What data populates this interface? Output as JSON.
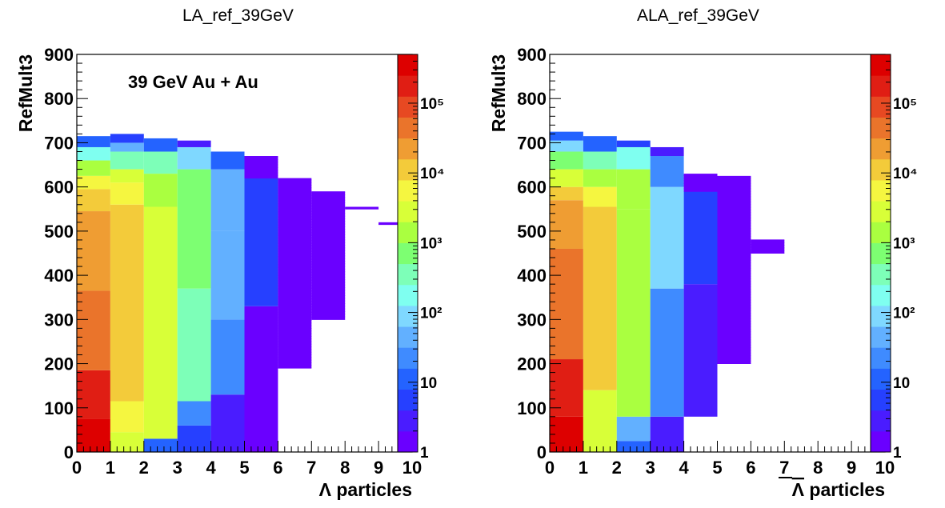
{
  "chart_data": [
    {
      "type": "heatmap",
      "title": "LA_ref_39GeV",
      "xlabel": "Λ particles",
      "ylabel": "RefMult3",
      "annotation": "39 GeV Au + Au",
      "xlim": [
        0,
        10
      ],
      "ylim": [
        0,
        900
      ],
      "x_ticks": [
        "0",
        "1",
        "2",
        "3",
        "4",
        "5",
        "6",
        "7",
        "8",
        "9",
        "10"
      ],
      "y_ticks": [
        "0",
        "100",
        "200",
        "300",
        "400",
        "500",
        "600",
        "700",
        "800",
        "900"
      ],
      "z_scale": "log",
      "z_range": [
        1,
        500000
      ],
      "z_tick_labels": [
        "1",
        "10",
        "10²",
        "10³",
        "10⁴",
        "10⁵"
      ],
      "columns": [
        {
          "x": 0,
          "ymax": 715,
          "bands": [
            [
              0,
              75,
              450000
            ],
            [
              75,
              185,
              150000
            ],
            [
              185,
              365,
              60000
            ],
            [
              365,
              545,
              20000
            ],
            [
              545,
              595,
              10000
            ],
            [
              595,
              625,
              4000
            ],
            [
              625,
              660,
              1200
            ],
            [
              660,
              690,
              150
            ],
            [
              690,
              715,
              10
            ]
          ]
        },
        {
          "x": 1,
          "ymax": 720,
          "bands": [
            [
              0,
              45,
              3000
            ],
            [
              45,
              115,
              7000
            ],
            [
              115,
              560,
              9000
            ],
            [
              560,
              610,
              5000
            ],
            [
              610,
              640,
              2000
            ],
            [
              640,
              680,
              400
            ],
            [
              680,
              700,
              40
            ],
            [
              700,
              720,
              5
            ]
          ]
        },
        {
          "x": 2,
          "ymax": 710,
          "bands": [
            [
              0,
              30,
              10
            ],
            [
              30,
              555,
              2500
            ],
            [
              555,
              630,
              1200
            ],
            [
              630,
              680,
              300
            ],
            [
              680,
              710,
              8
            ]
          ]
        },
        {
          "x": 3,
          "ymax": 705,
          "bands": [
            [
              0,
              60,
              5
            ],
            [
              60,
              115,
              30
            ],
            [
              115,
              370,
              300
            ],
            [
              370,
              640,
              900
            ],
            [
              640,
              690,
              100
            ],
            [
              690,
              705,
              3
            ]
          ]
        },
        {
          "x": 4,
          "ymax": 680,
          "bands": [
            [
              0,
              130,
              3
            ],
            [
              130,
              300,
              20
            ],
            [
              300,
              500,
              50
            ],
            [
              500,
              640,
              60
            ],
            [
              640,
              680,
              8
            ]
          ]
        },
        {
          "x": 5,
          "ymax": 670,
          "bands": [
            [
              0,
              330,
              1.5
            ],
            [
              330,
              620,
              4
            ],
            [
              620,
              670,
              1.5
            ]
          ]
        },
        {
          "x": 6,
          "ymax": 620,
          "bands": [
            [
              190,
              620,
              1.2
            ]
          ]
        },
        {
          "x": 7,
          "ymax": 590,
          "bands": [
            [
              300,
              590,
              1
            ]
          ]
        },
        {
          "x": 8,
          "ymax": 555,
          "bands": [
            [
              550,
              555,
              1
            ]
          ]
        },
        {
          "x": 9,
          "ymax": 520,
          "bands": [
            [
              515,
              520,
              1
            ]
          ]
        }
      ]
    },
    {
      "type": "heatmap",
      "title": "ALA_ref_39GeV",
      "xlabel": "Λ particles",
      "ylabel": "RefMult3",
      "xlim": [
        0,
        10
      ],
      "ylim": [
        0,
        900
      ],
      "x_ticks": [
        "0",
        "1",
        "2",
        "3",
        "4",
        "5",
        "6",
        "7",
        "8",
        "9",
        "10"
      ],
      "y_ticks": [
        "0",
        "100",
        "200",
        "300",
        "400",
        "500",
        "600",
        "700",
        "800",
        "900"
      ],
      "z_scale": "log",
      "z_range": [
        1,
        500000
      ],
      "z_tick_labels": [
        "1",
        "10",
        "10²",
        "10³",
        "10⁴",
        "10⁵"
      ],
      "columns": [
        {
          "x": 0,
          "ymax": 725,
          "bands": [
            [
              0,
              80,
              450000
            ],
            [
              80,
              210,
              150000
            ],
            [
              210,
              460,
              50000
            ],
            [
              460,
              570,
              20000
            ],
            [
              570,
              600,
              8000
            ],
            [
              600,
              640,
              2500
            ],
            [
              640,
              680,
              600
            ],
            [
              680,
              705,
              100
            ],
            [
              705,
              725,
              10
            ]
          ]
        },
        {
          "x": 1,
          "ymax": 715,
          "bands": [
            [
              0,
              140,
              2500
            ],
            [
              140,
              555,
              9000
            ],
            [
              555,
              600,
              6000
            ],
            [
              600,
              640,
              1500
            ],
            [
              640,
              680,
              300
            ],
            [
              680,
              715,
              15
            ]
          ]
        },
        {
          "x": 2,
          "ymax": 705,
          "bands": [
            [
              0,
              25,
              8
            ],
            [
              25,
              80,
              60
            ],
            [
              80,
              550,
              1500
            ],
            [
              550,
              640,
              1200
            ],
            [
              640,
              690,
              200
            ],
            [
              690,
              705,
              6
            ]
          ]
        },
        {
          "x": 3,
          "ymax": 690,
          "bands": [
            [
              0,
              80,
              2
            ],
            [
              80,
              370,
              30
            ],
            [
              370,
              600,
              100
            ],
            [
              600,
              670,
              20
            ],
            [
              670,
              690,
              3
            ]
          ]
        },
        {
          "x": 4,
          "ymax": 630,
          "bands": [
            [
              80,
              380,
              2
            ],
            [
              380,
              590,
              5
            ],
            [
              590,
              630,
              1.5
            ]
          ]
        },
        {
          "x": 5,
          "ymax": 625,
          "bands": [
            [
              200,
              625,
              1.2
            ]
          ]
        },
        {
          "x": 6,
          "ymax": 480,
          "bands": [
            [
              450,
              480,
              1
            ]
          ]
        }
      ]
    }
  ]
}
